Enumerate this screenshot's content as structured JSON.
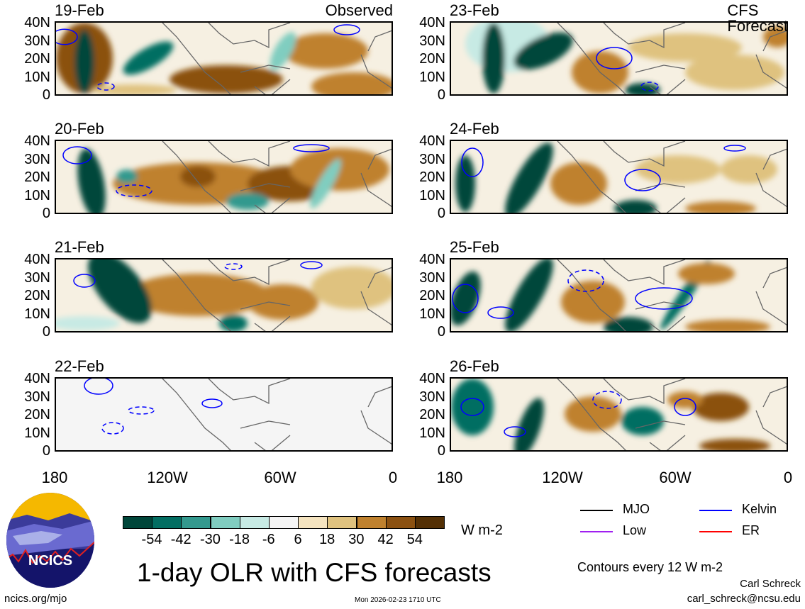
{
  "panels": [
    {
      "date": "19-Feb",
      "tag": "Observed",
      "side": "left",
      "row": 0
    },
    {
      "date": "20-Feb",
      "tag": "",
      "side": "left",
      "row": 1
    },
    {
      "date": "21-Feb",
      "tag": "",
      "side": "left",
      "row": 2
    },
    {
      "date": "22-Feb",
      "tag": "",
      "side": "left",
      "row": 3
    },
    {
      "date": "23-Feb",
      "tag": "CFS Forecast",
      "side": "right",
      "row": 0
    },
    {
      "date": "24-Feb",
      "tag": "",
      "side": "right",
      "row": 1
    },
    {
      "date": "25-Feb",
      "tag": "",
      "side": "right",
      "row": 2
    },
    {
      "date": "26-Feb",
      "tag": "",
      "side": "right",
      "row": 3
    }
  ],
  "y_ticks": [
    "40N",
    "30N",
    "20N",
    "10N",
    "0"
  ],
  "x_ticks": [
    "180",
    "120W",
    "60W",
    "0"
  ],
  "colorbar": {
    "colors": [
      "#00463a",
      "#036e62",
      "#33998e",
      "#80cdc0",
      "#c7eae4",
      "#f5f5f5",
      "#f5e4c0",
      "#dfc27f",
      "#bf812e",
      "#8b5111",
      "#543005"
    ],
    "labels": [
      "-54",
      "-42",
      "-30",
      "-18",
      "-6",
      "6",
      "18",
      "30",
      "42",
      "54"
    ],
    "units": "W m-2"
  },
  "legend": [
    {
      "label": "MJO",
      "color": "#000000"
    },
    {
      "label": "Kelvin",
      "color": "#0000ff"
    },
    {
      "label": "Low",
      "color": "#a020f0"
    },
    {
      "label": "ER",
      "color": "#ff0000"
    }
  ],
  "contour_note": "Contours every 12 W m-2",
  "title": "1-day OLR with CFS forecasts",
  "logo_text": "NCICS",
  "website": "ncics.org/mjo",
  "timestamp": "Mon 2026-02-23 1710 UTC",
  "author": "Carl Schreck",
  "email": "carl_schreck@ncsu.edu"
}
